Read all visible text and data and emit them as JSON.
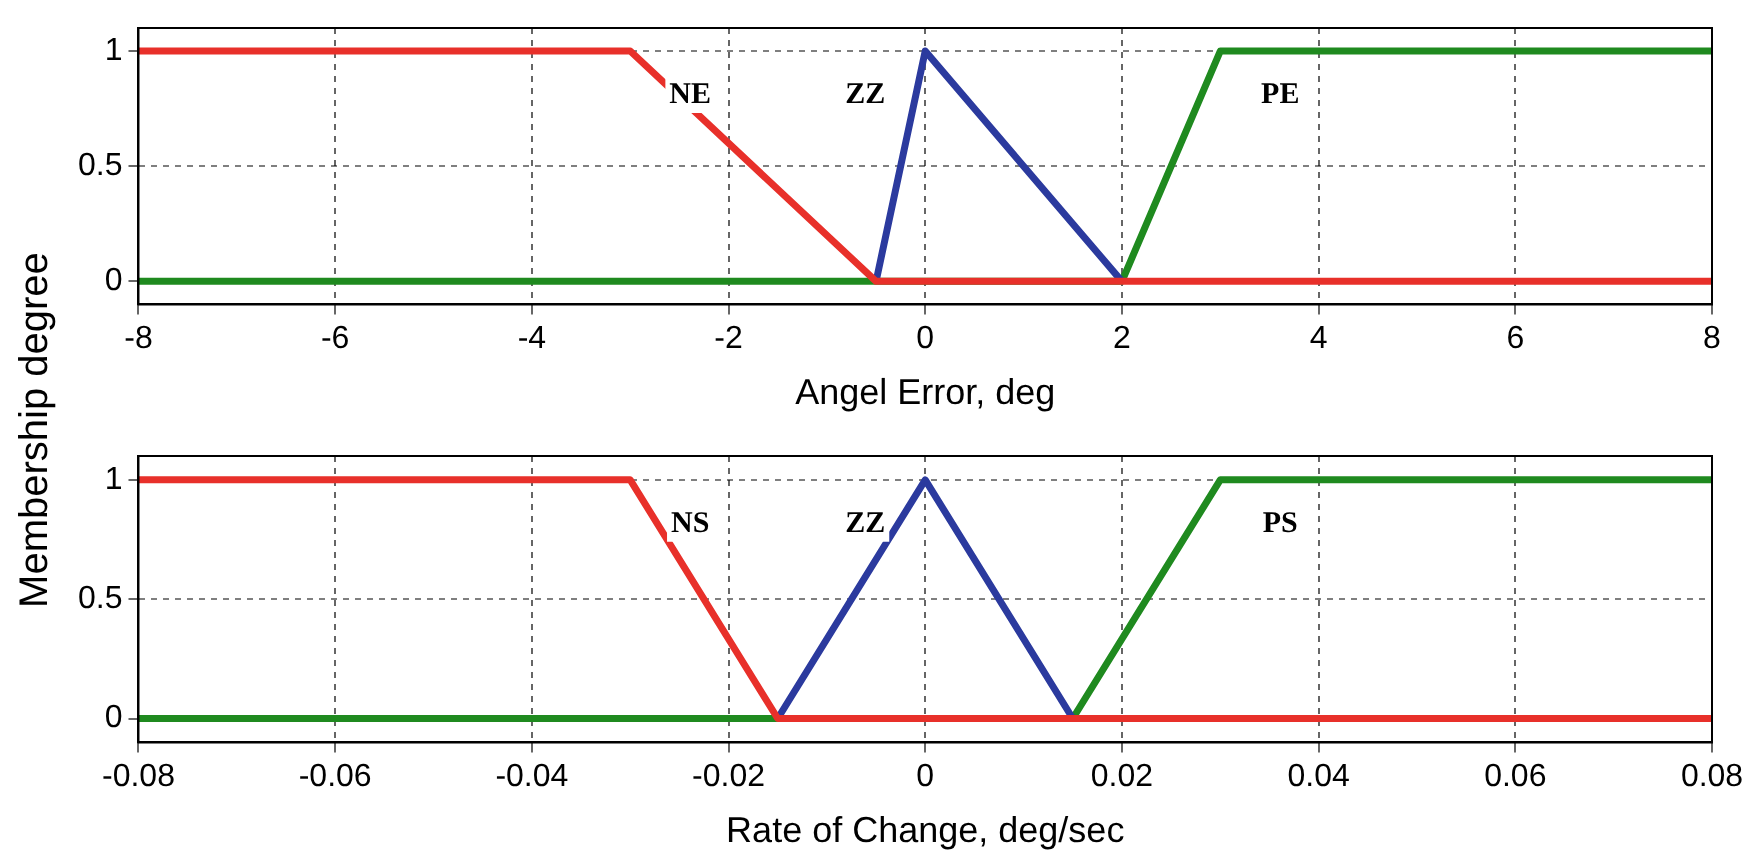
{
  "chart_data": [
    {
      "type": "line",
      "xlabel": "Angel Error, deg",
      "ylabel": "Membership degree",
      "xlim": [
        -8,
        8
      ],
      "xticks": [
        -8,
        -6,
        -4,
        -2,
        0,
        2,
        4,
        6,
        8
      ],
      "ylim": [
        -0.1,
        1.1
      ],
      "yticks": [
        0,
        0.5,
        1
      ],
      "grid": true,
      "legend": false,
      "marker": "none",
      "line_style": "solid",
      "series": [
        {
          "name": "NE",
          "color": "#e8302a",
          "x": [
            -8,
            -3,
            -0.5,
            8
          ],
          "values": [
            1,
            1,
            0,
            0
          ]
        },
        {
          "name": "ZZ",
          "color": "#2b3a9e",
          "x": [
            -0.5,
            0,
            2
          ],
          "values": [
            0,
            1,
            0
          ]
        },
        {
          "name": "PE",
          "color": "#1f8a1f",
          "x": [
            -8,
            2,
            3,
            8
          ],
          "values": [
            0,
            0,
            1,
            1
          ]
        }
      ]
    },
    {
      "type": "line",
      "xlabel": "Rate of Change, deg/sec",
      "xlim": [
        -0.08,
        0.08
      ],
      "xticks": [
        -0.08,
        -0.06,
        -0.04,
        -0.02,
        0,
        0.02,
        0.04,
        0.06,
        0.08
      ],
      "ylim": [
        -0.1,
        1.1
      ],
      "yticks": [
        0,
        0.5,
        1
      ],
      "grid": true,
      "legend": false,
      "marker": "none",
      "line_style": "solid",
      "series": [
        {
          "name": "NS",
          "color": "#e8302a",
          "x": [
            -0.08,
            -0.03,
            -0.015,
            0.08
          ],
          "values": [
            1,
            1,
            0,
            0
          ]
        },
        {
          "name": "ZZ",
          "color": "#2b3a9e",
          "x": [
            -0.015,
            0,
            0.015
          ],
          "values": [
            0,
            1,
            0
          ]
        },
        {
          "name": "PS",
          "color": "#1f8a1f",
          "x": [
            -0.08,
            0.015,
            0.03,
            0.08
          ],
          "values": [
            0,
            0,
            1,
            1
          ]
        }
      ]
    }
  ]
}
